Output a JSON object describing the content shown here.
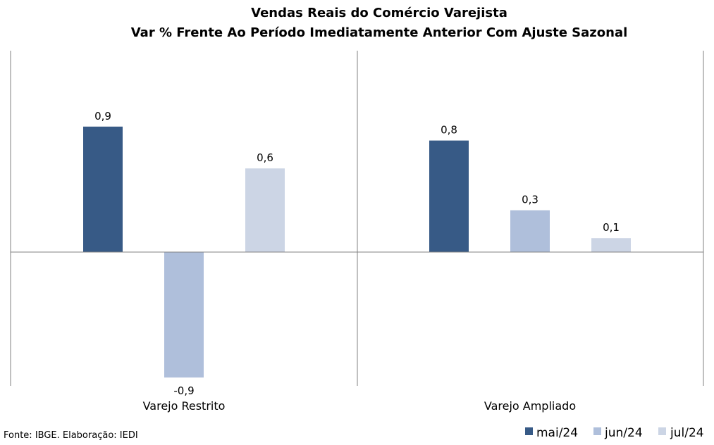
{
  "chart_data": {
    "type": "bar",
    "title": "Vendas Reais do Comércio Varejista",
    "subtitle": "Var % Frente Ao Período Imediatamente Anterior Com Ajuste Sazonal",
    "categories": [
      "Varejo Restrito",
      "Varejo Ampliado"
    ],
    "series": [
      {
        "name": "mai/24",
        "values": [
          0.9,
          0.8
        ],
        "labels": [
          "0,9",
          "0,8"
        ],
        "color": "#375a86"
      },
      {
        "name": "jun/24",
        "values": [
          -0.9,
          0.3
        ],
        "labels": [
          "-0,9",
          "0,3"
        ],
        "color": "#afbfdb"
      },
      {
        "name": "jul/24",
        "values": [
          0.6,
          0.1
        ],
        "labels": [
          "0,6",
          "0,1"
        ],
        "color": "#ccd5e5"
      }
    ],
    "ylim": [
      -1.0,
      1.5
    ],
    "grid": false,
    "legend": "bottom-right",
    "source": "Fonte: IBGE. Elaboração: IEDI"
  }
}
